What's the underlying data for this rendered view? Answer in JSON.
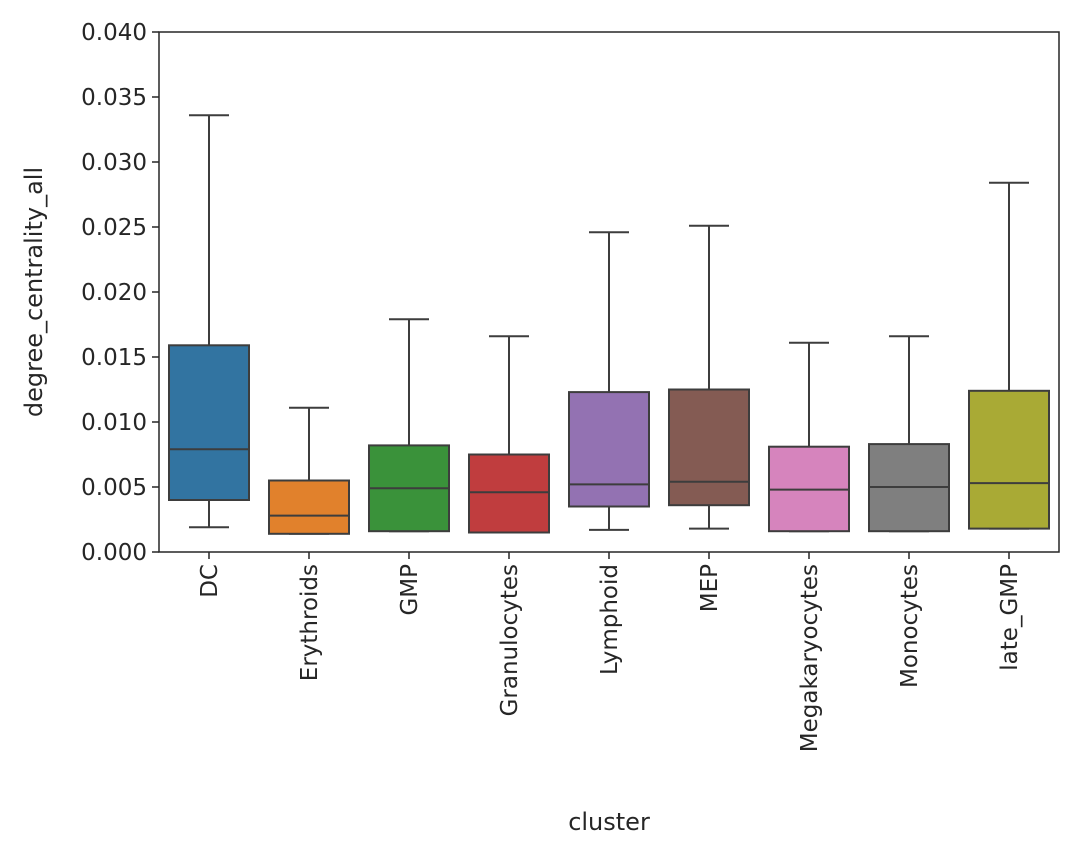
{
  "chart_data": {
    "type": "box",
    "xlabel": "cluster",
    "ylabel": "degree_centrality_all",
    "ylim": [
      0,
      0.04
    ],
    "yticks": [
      "0.000",
      "0.005",
      "0.010",
      "0.015",
      "0.020",
      "0.025",
      "0.030",
      "0.035",
      "0.040"
    ],
    "ytick_values": [
      0,
      0.005,
      0.01,
      0.015,
      0.02,
      0.025,
      0.03,
      0.035,
      0.04
    ],
    "grid": false,
    "legend": "none",
    "categories": [
      "DC",
      "Erythroids",
      "GMP",
      "Granulocytes",
      "Lymphoid",
      "MEP",
      "Megakaryocytes",
      "Monocytes",
      "late_GMP"
    ],
    "boxes": [
      {
        "whisker_low": 0.0019,
        "q1": 0.004,
        "median": 0.0079,
        "q3": 0.0159,
        "whisker_high": 0.0336,
        "color": "#3274a1"
      },
      {
        "whisker_low": 0.0014,
        "q1": 0.0014,
        "median": 0.0028,
        "q3": 0.0055,
        "whisker_high": 0.0111,
        "color": "#e1812c"
      },
      {
        "whisker_low": 0.0016,
        "q1": 0.0016,
        "median": 0.0049,
        "q3": 0.0082,
        "whisker_high": 0.0179,
        "color": "#3a923a"
      },
      {
        "whisker_low": 0.0015,
        "q1": 0.0015,
        "median": 0.0046,
        "q3": 0.0075,
        "whisker_high": 0.0166,
        "color": "#c03d3e"
      },
      {
        "whisker_low": 0.0017,
        "q1": 0.0035,
        "median": 0.0052,
        "q3": 0.0123,
        "whisker_high": 0.0246,
        "color": "#9372b2"
      },
      {
        "whisker_low": 0.0018,
        "q1": 0.0036,
        "median": 0.0054,
        "q3": 0.0125,
        "whisker_high": 0.0251,
        "color": "#845b53"
      },
      {
        "whisker_low": 0.0016,
        "q1": 0.0016,
        "median": 0.0048,
        "q3": 0.0081,
        "whisker_high": 0.0161,
        "color": "#d684bd"
      },
      {
        "whisker_low": 0.0016,
        "q1": 0.0016,
        "median": 0.005,
        "q3": 0.0083,
        "whisker_high": 0.0166,
        "color": "#7f7f7f"
      },
      {
        "whisker_low": 0.0018,
        "q1": 0.0018,
        "median": 0.0053,
        "q3": 0.0124,
        "whisker_high": 0.0284,
        "color": "#a9aa35"
      }
    ]
  }
}
